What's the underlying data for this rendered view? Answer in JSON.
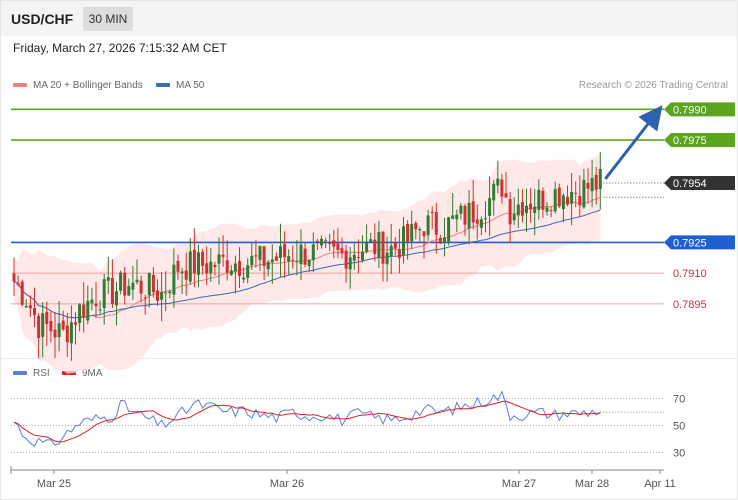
{
  "header": {
    "symbol": "USD/CHF",
    "timeframe": "30 MIN",
    "datetime": "Friday, March 27, 2026 7:15:32 AM CET",
    "copyright": "Research © 2026 Trading Central"
  },
  "legend": {
    "ma20_label": "MA 20 + Bollinger Bands",
    "ma50_label": "MA 50",
    "rsi_label": "RSI",
    "ma9_label": "9MA"
  },
  "colors": {
    "bull": "#2e7d32",
    "bear": "#d32f2f",
    "band": "#fde0e0",
    "ma20": "#f08080",
    "ma50": "#3a6ab5",
    "resistance": "#5aa51d",
    "support_blue": "#1f5fd1",
    "support_red": "#f0a0a0",
    "price_tag": "#333333",
    "rsi": "#5b7fd6",
    "rsi_ma": "#e02020"
  },
  "chart_data": [
    {
      "type": "candlestick",
      "title": "USD/CHF",
      "timeframe": "30 MIN",
      "indicators": [
        "MA 20 + Bollinger Bands",
        "MA 50"
      ],
      "ylim": [
        0.787,
        0.7997
      ],
      "x_ticks": [
        "Mar 25",
        "Mar 26",
        "Mar 27",
        "Mar 28",
        "Apr 11"
      ],
      "current_price": "0.7954",
      "levels": [
        {
          "value": "0.7990",
          "kind": "resistance"
        },
        {
          "value": "0.7975",
          "kind": "resistance"
        },
        {
          "value": "0.7925",
          "kind": "pivot"
        },
        {
          "value": "0.7910",
          "kind": "support"
        },
        {
          "value": "0.7895",
          "kind": "support"
        }
      ],
      "target": {
        "from": 0.7956,
        "to": 0.799
      },
      "anchors": [
        [
          0,
          0.7906
        ],
        [
          3,
          0.7898
        ],
        [
          6,
          0.7885
        ],
        [
          9,
          0.7883
        ],
        [
          12,
          0.788
        ],
        [
          16,
          0.7892
        ],
        [
          20,
          0.7899
        ],
        [
          24,
          0.7901
        ],
        [
          28,
          0.7905
        ],
        [
          32,
          0.7903
        ],
        [
          36,
          0.79
        ],
        [
          40,
          0.7913
        ],
        [
          44,
          0.7914
        ],
        [
          48,
          0.7914
        ],
        [
          52,
          0.7916
        ],
        [
          56,
          0.7915
        ],
        [
          60,
          0.7916
        ],
        [
          64,
          0.7917
        ],
        [
          68,
          0.792
        ],
        [
          72,
          0.792
        ],
        [
          76,
          0.7919
        ],
        [
          80,
          0.7919
        ],
        [
          84,
          0.7922
        ],
        [
          88,
          0.7923
        ],
        [
          92,
          0.7922
        ],
        [
          96,
          0.7926
        ],
        [
          100,
          0.7934
        ],
        [
          104,
          0.7932
        ],
        [
          108,
          0.7936
        ],
        [
          112,
          0.794
        ],
        [
          116,
          0.7946
        ],
        [
          119,
          0.7953
        ],
        [
          121,
          0.7941
        ],
        [
          124,
          0.7945
        ],
        [
          128,
          0.7946
        ],
        [
          132,
          0.7949
        ],
        [
          136,
          0.795
        ],
        [
          140,
          0.7952
        ],
        [
          143,
          0.7954
        ]
      ]
    },
    {
      "type": "line",
      "title": "RSI",
      "series": [
        {
          "name": "RSI"
        },
        {
          "name": "9MA"
        }
      ],
      "ylim": [
        20,
        80
      ],
      "y_ticks": [
        70,
        50,
        30
      ],
      "anchors": [
        [
          0,
          53
        ],
        [
          3,
          41
        ],
        [
          6,
          38
        ],
        [
          9,
          35
        ],
        [
          12,
          42
        ],
        [
          16,
          52
        ],
        [
          20,
          55
        ],
        [
          24,
          57
        ],
        [
          26,
          66
        ],
        [
          28,
          62
        ],
        [
          32,
          56
        ],
        [
          36,
          50
        ],
        [
          40,
          57
        ],
        [
          44,
          66
        ],
        [
          48,
          64
        ],
        [
          52,
          60
        ],
        [
          56,
          61
        ],
        [
          60,
          58
        ],
        [
          64,
          56
        ],
        [
          68,
          60
        ],
        [
          72,
          57
        ],
        [
          76,
          58
        ],
        [
          80,
          54
        ],
        [
          84,
          59
        ],
        [
          88,
          56
        ],
        [
          92,
          54
        ],
        [
          96,
          57
        ],
        [
          100,
          62
        ],
        [
          104,
          60
        ],
        [
          108,
          63
        ],
        [
          112,
          66
        ],
        [
          116,
          70
        ],
        [
          119,
          72
        ],
        [
          121,
          58
        ],
        [
          124,
          58
        ],
        [
          128,
          60
        ],
        [
          132,
          58
        ],
        [
          136,
          59
        ],
        [
          140,
          60
        ],
        [
          143,
          61
        ]
      ]
    }
  ]
}
